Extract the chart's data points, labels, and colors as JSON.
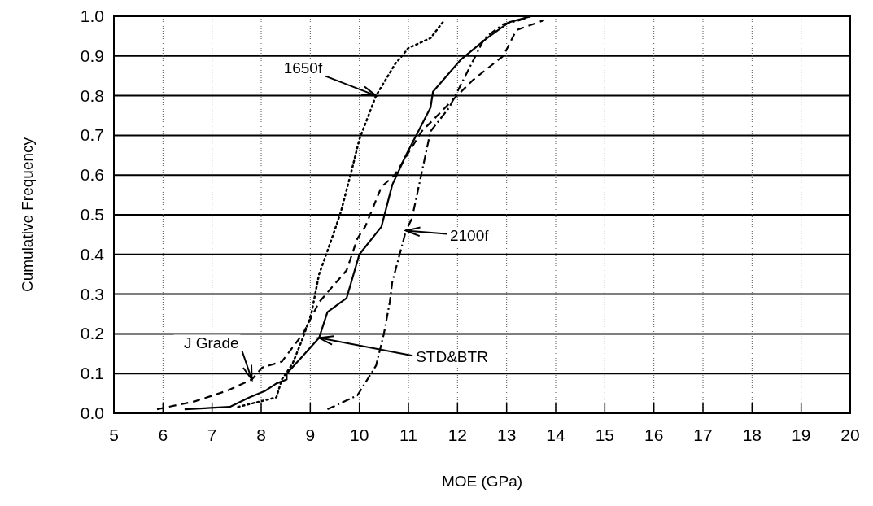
{
  "chart_data": {
    "type": "line",
    "xlabel": "MOE (GPa)",
    "ylabel": "Cumulative Frequency",
    "xlim": [
      5,
      20
    ],
    "xticks": [
      5,
      6,
      7,
      8,
      9,
      10,
      11,
      12,
      13,
      14,
      15,
      16,
      17,
      18,
      19,
      20
    ],
    "ylim": [
      0,
      1
    ],
    "yticks": [
      {
        "value": 0,
        "label": "0.0"
      },
      0.1,
      0.2,
      0.3,
      0.4,
      0.5,
      0.6,
      0.7,
      0.8,
      0.9,
      {
        "value": 1,
        "label": "1.0"
      }
    ],
    "grid": true,
    "marker": "none",
    "annotations": [
      {
        "text": "J Grade",
        "x": 7.81,
        "y": 0.085
      },
      {
        "text": "STD&BTR",
        "x": 9.18,
        "y": 0.19
      },
      {
        "text": "1650f",
        "x": 10.34,
        "y": 0.8
      },
      {
        "text": "2100f",
        "x": 10.95,
        "y": 0.46
      }
    ],
    "series": [
      {
        "color": "#000000",
        "line_style": "dashed",
        "x": [
          5.88,
          6.65,
          7.31,
          7.81,
          8.02,
          8.42,
          8.85,
          9.18,
          9.74,
          9.96,
          10.12,
          10.45,
          10.72,
          11.27,
          11.99,
          12.32,
          12.93,
          13.2,
          13.76
        ],
        "values": [
          0.01,
          0.03,
          0.057,
          0.085,
          0.115,
          0.13,
          0.2,
          0.28,
          0.36,
          0.44,
          0.47,
          0.57,
          0.6,
          0.71,
          0.8,
          0.84,
          0.9,
          0.965,
          0.99
        ]
      },
      {
        "color": "#000000",
        "line_style": "solid",
        "x": [
          6.44,
          7.36,
          7.76,
          8.09,
          8.31,
          8.52,
          8.52,
          8.86,
          9.18,
          9.35,
          9.74,
          10.0,
          10.45,
          10.67,
          10.95,
          11.45,
          11.5,
          12.06,
          12.6,
          13.05,
          13.5
        ],
        "values": [
          0.01,
          0.016,
          0.04,
          0.057,
          0.075,
          0.085,
          0.1,
          0.146,
          0.19,
          0.255,
          0.29,
          0.4,
          0.47,
          0.575,
          0.65,
          0.77,
          0.81,
          0.89,
          0.945,
          0.985,
          1.0
        ]
      },
      {
        "color": "#000000",
        "line_style": "dotted",
        "x": [
          7.53,
          8.31,
          8.42,
          8.64,
          8.85,
          9.02,
          9.18,
          9.41,
          9.55,
          9.63,
          9.84,
          10.0,
          10.34,
          10.73,
          11.0,
          11.45,
          11.7
        ],
        "values": [
          0.016,
          0.04,
          0.085,
          0.125,
          0.19,
          0.25,
          0.35,
          0.43,
          0.48,
          0.51,
          0.61,
          0.69,
          0.8,
          0.88,
          0.92,
          0.945,
          0.985
        ]
      },
      {
        "color": "#000000",
        "line_style": "dashdot",
        "x": [
          9.35,
          9.96,
          10.34,
          10.5,
          10.62,
          10.67,
          10.95,
          11.07,
          11.45,
          11.83,
          12.16,
          12.55,
          12.93,
          13.26,
          13.48
        ],
        "values": [
          0.01,
          0.045,
          0.12,
          0.2,
          0.28,
          0.33,
          0.46,
          0.49,
          0.71,
          0.77,
          0.85,
          0.945,
          0.98,
          0.99,
          1.0
        ]
      }
    ]
  }
}
